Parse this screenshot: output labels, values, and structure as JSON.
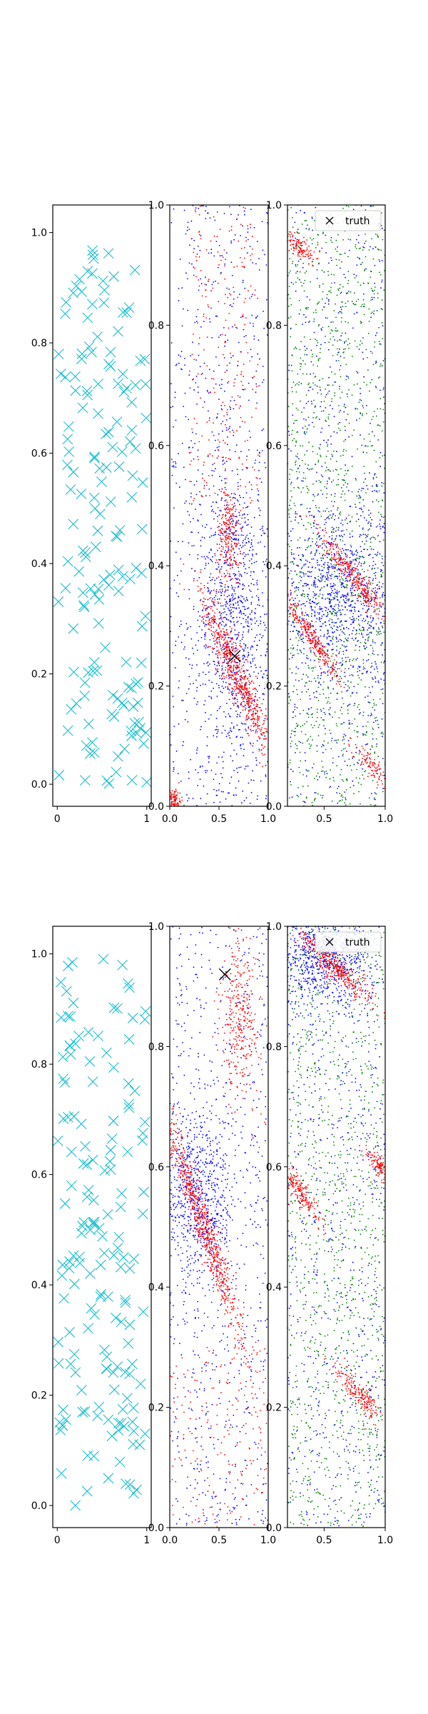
{
  "chart_data": [
    {
      "type": "scatter",
      "title": "",
      "xlabel": "",
      "ylabel": "",
      "xlim": [
        -0.05,
        1.05
      ],
      "ylim": [
        -0.04,
        1.05
      ],
      "xticks": [
        0,
        1
      ],
      "yticks": [
        0.0,
        0.2,
        0.4,
        0.6,
        0.8,
        1.0
      ],
      "tick_labels_x": [
        "0",
        "1"
      ],
      "tick_labels_y": [
        "0.0",
        "0.2",
        "0.4",
        "0.6",
        "0.8",
        "1.0"
      ],
      "grid": false,
      "series": [
        {
          "marker": "x",
          "color": "#17becf",
          "count": 160,
          "distribution": "uniform"
        }
      ]
    },
    {
      "type": "scatter",
      "title": "",
      "xlim": [
        0.0,
        1.0
      ],
      "ylim": [
        0.0,
        1.0
      ],
      "xticks": [
        0.0,
        0.5,
        1.0
      ],
      "yticks": [
        0.0,
        0.2,
        0.4,
        0.6,
        0.8,
        1.0
      ],
      "tick_labels_x": [
        "0.0",
        "0.5",
        "1.0"
      ],
      "tick_labels_y": [
        "0.0",
        "0.2",
        "0.4",
        "0.6",
        "0.8",
        "1.0"
      ],
      "grid": false,
      "series": [
        {
          "color": "#0000ff",
          "marker": "dot",
          "count": 1500,
          "distribution": "diffuse, denser near (0.65, 0.3)"
        },
        {
          "color": "#ff0000",
          "marker": "dot",
          "count": 1200,
          "distribution": "diagonal band through (0.65, 0.23), upper cloud near (0.6, 0.45), corner (0.05, 0.01)"
        }
      ],
      "truth": {
        "marker": "x",
        "color": "#000000",
        "x": 0.66,
        "y": 0.25
      }
    },
    {
      "type": "scatter",
      "title": "",
      "xlim": [
        0.2,
        1.0
      ],
      "ylim": [
        0.0,
        1.0
      ],
      "xticks": [
        0.5,
        1.0
      ],
      "yticks": [
        0.0,
        0.2,
        0.4,
        0.6,
        0.8,
        1.0
      ],
      "tick_labels_x": [
        "0.5",
        "1.0"
      ],
      "tick_labels_y": [
        "0.0",
        "0.2",
        "0.4",
        "0.6",
        "0.8",
        "1.0"
      ],
      "grid": false,
      "legend": {
        "placement": "top-right",
        "entries": [
          {
            "label": "truth",
            "marker": "x"
          }
        ]
      },
      "series": [
        {
          "color": "#0000ff",
          "marker": "dot",
          "count": 1600,
          "distribution": "dense band y 0.25-0.45"
        },
        {
          "color": "#008000",
          "marker": "dot",
          "count": 1300,
          "distribution": "diffuse"
        },
        {
          "color": "#ff0000",
          "marker": "dot",
          "count": 900,
          "distribution": "diagonal stripes at y ~0.37, 0.29, 0.93, 0.07"
        }
      ]
    },
    {
      "type": "scatter",
      "title": "",
      "xlim": [
        -0.05,
        1.05
      ],
      "ylim": [
        -0.04,
        1.05
      ],
      "xticks": [
        0,
        1
      ],
      "yticks": [
        0.0,
        0.2,
        0.4,
        0.6,
        0.8,
        1.0
      ],
      "tick_labels_x": [
        "0",
        "1"
      ],
      "tick_labels_y": [
        "0.0",
        "0.2",
        "0.4",
        "0.6",
        "0.8",
        "1.0"
      ],
      "grid": false,
      "series": [
        {
          "marker": "x",
          "color": "#17becf",
          "count": 160,
          "distribution": "uniform"
        }
      ]
    },
    {
      "type": "scatter",
      "title": "",
      "xlim": [
        0.0,
        1.0
      ],
      "ylim": [
        0.0,
        1.0
      ],
      "xticks": [
        0.0,
        0.5,
        1.0
      ],
      "yticks": [
        0.0,
        0.2,
        0.4,
        0.6,
        0.8,
        1.0
      ],
      "tick_labels_x": [
        "0.0",
        "0.5",
        "1.0"
      ],
      "tick_labels_y": [
        "0.0",
        "0.2",
        "0.4",
        "0.6",
        "0.8",
        "1.0"
      ],
      "grid": false,
      "series": [
        {
          "color": "#0000ff",
          "marker": "dot",
          "count": 1400,
          "distribution": "diffuse, denser near (0.3, 0.55)"
        },
        {
          "color": "#ff0000",
          "marker": "dot",
          "count": 1300,
          "distribution": "diagonal band through (0.35, 0.5), upper cloud near (0.7, 0.85)"
        }
      ],
      "truth": {
        "marker": "x",
        "color": "#000000",
        "x": 0.56,
        "y": 0.92
      }
    },
    {
      "type": "scatter",
      "title": "",
      "xlim": [
        0.2,
        1.0
      ],
      "ylim": [
        0.0,
        1.0
      ],
      "xticks": [
        0.5,
        1.0
      ],
      "yticks": [
        0.0,
        0.2,
        0.4,
        0.6,
        0.8,
        1.0
      ],
      "tick_labels_x": [
        "0.5",
        "1.0"
      ],
      "tick_labels_y": [
        "0.0",
        "0.2",
        "0.4",
        "0.6",
        "0.8",
        "1.0"
      ],
      "grid": false,
      "legend": {
        "placement": "top-right",
        "entries": [
          {
            "label": "truth",
            "marker": "x"
          }
        ]
      },
      "series": [
        {
          "color": "#0000ff",
          "marker": "dot",
          "count": 1500,
          "distribution": "dense near top y 0.9-1.0, diffuse elsewhere"
        },
        {
          "color": "#008000",
          "marker": "dot",
          "count": 1200,
          "distribution": "diffuse"
        },
        {
          "color": "#ff0000",
          "marker": "dot",
          "count": 900,
          "distribution": "diagonal stripes at y ~0.93, 0.56, 0.22, 0.6"
        }
      ]
    }
  ]
}
